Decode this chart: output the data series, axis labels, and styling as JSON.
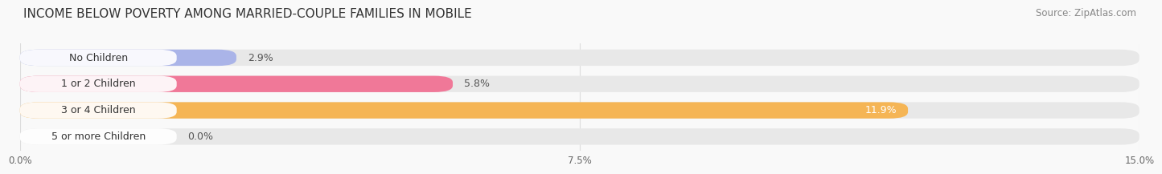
{
  "title": "INCOME BELOW POVERTY AMONG MARRIED-COUPLE FAMILIES IN MOBILE",
  "source": "Source: ZipAtlas.com",
  "categories": [
    "No Children",
    "1 or 2 Children",
    "3 or 4 Children",
    "5 or more Children"
  ],
  "values": [
    2.9,
    5.8,
    11.9,
    0.0
  ],
  "bar_colors": [
    "#aab4e8",
    "#f07898",
    "#f5b555",
    "#f0a8a8"
  ],
  "bar_bg_color": "#e8e8e8",
  "white_pill_color": "#ffffff",
  "xlim": [
    0,
    15.0
  ],
  "xticks": [
    0.0,
    7.5,
    15.0
  ],
  "xtick_labels": [
    "0.0%",
    "7.5%",
    "15.0%"
  ],
  "title_fontsize": 11,
  "source_fontsize": 8.5,
  "bar_label_fontsize": 9,
  "category_fontsize": 9,
  "bar_height": 0.62,
  "background_color": "#f9f9f9",
  "grid_color": "#dddddd"
}
